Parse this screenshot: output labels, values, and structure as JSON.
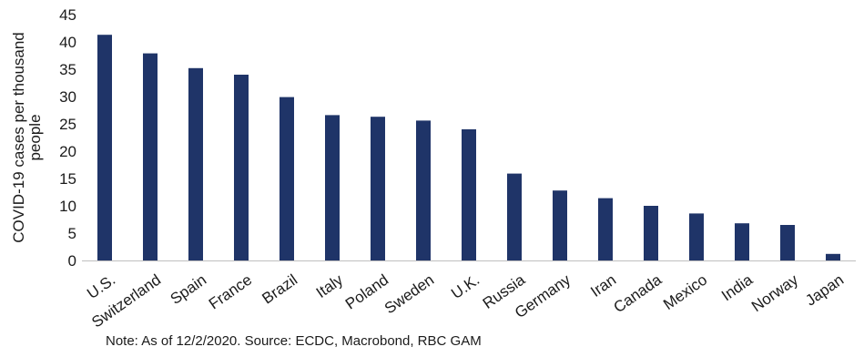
{
  "chart_data": {
    "type": "bar",
    "categories": [
      "U.S.",
      "Switzerland",
      "Spain",
      "France",
      "Brazil",
      "Italy",
      "Poland",
      "Sweden",
      "U.K.",
      "Russia",
      "Germany",
      "Iran",
      "Canada",
      "Mexico",
      "India",
      "Norway",
      "Japan"
    ],
    "values": [
      41.3,
      37.9,
      35.2,
      34.0,
      29.9,
      26.6,
      26.3,
      25.6,
      24.0,
      15.9,
      12.8,
      11.4,
      10.0,
      8.6,
      6.8,
      6.5,
      1.2
    ],
    "title": "",
    "xlabel": "",
    "ylabel": "COVID-19 cases per thousand people",
    "ylabel_lines": [
      "COVID-19 cases per thousand",
      "people"
    ],
    "ylim": [
      0,
      45
    ],
    "yticks": [
      0,
      5,
      10,
      15,
      20,
      25,
      30,
      35,
      40,
      45
    ],
    "grid": false,
    "bar_color": "#1f3468"
  },
  "note": "Note: As of 12/2/2020. Source: ECDC, Macrobond, RBC GAM"
}
